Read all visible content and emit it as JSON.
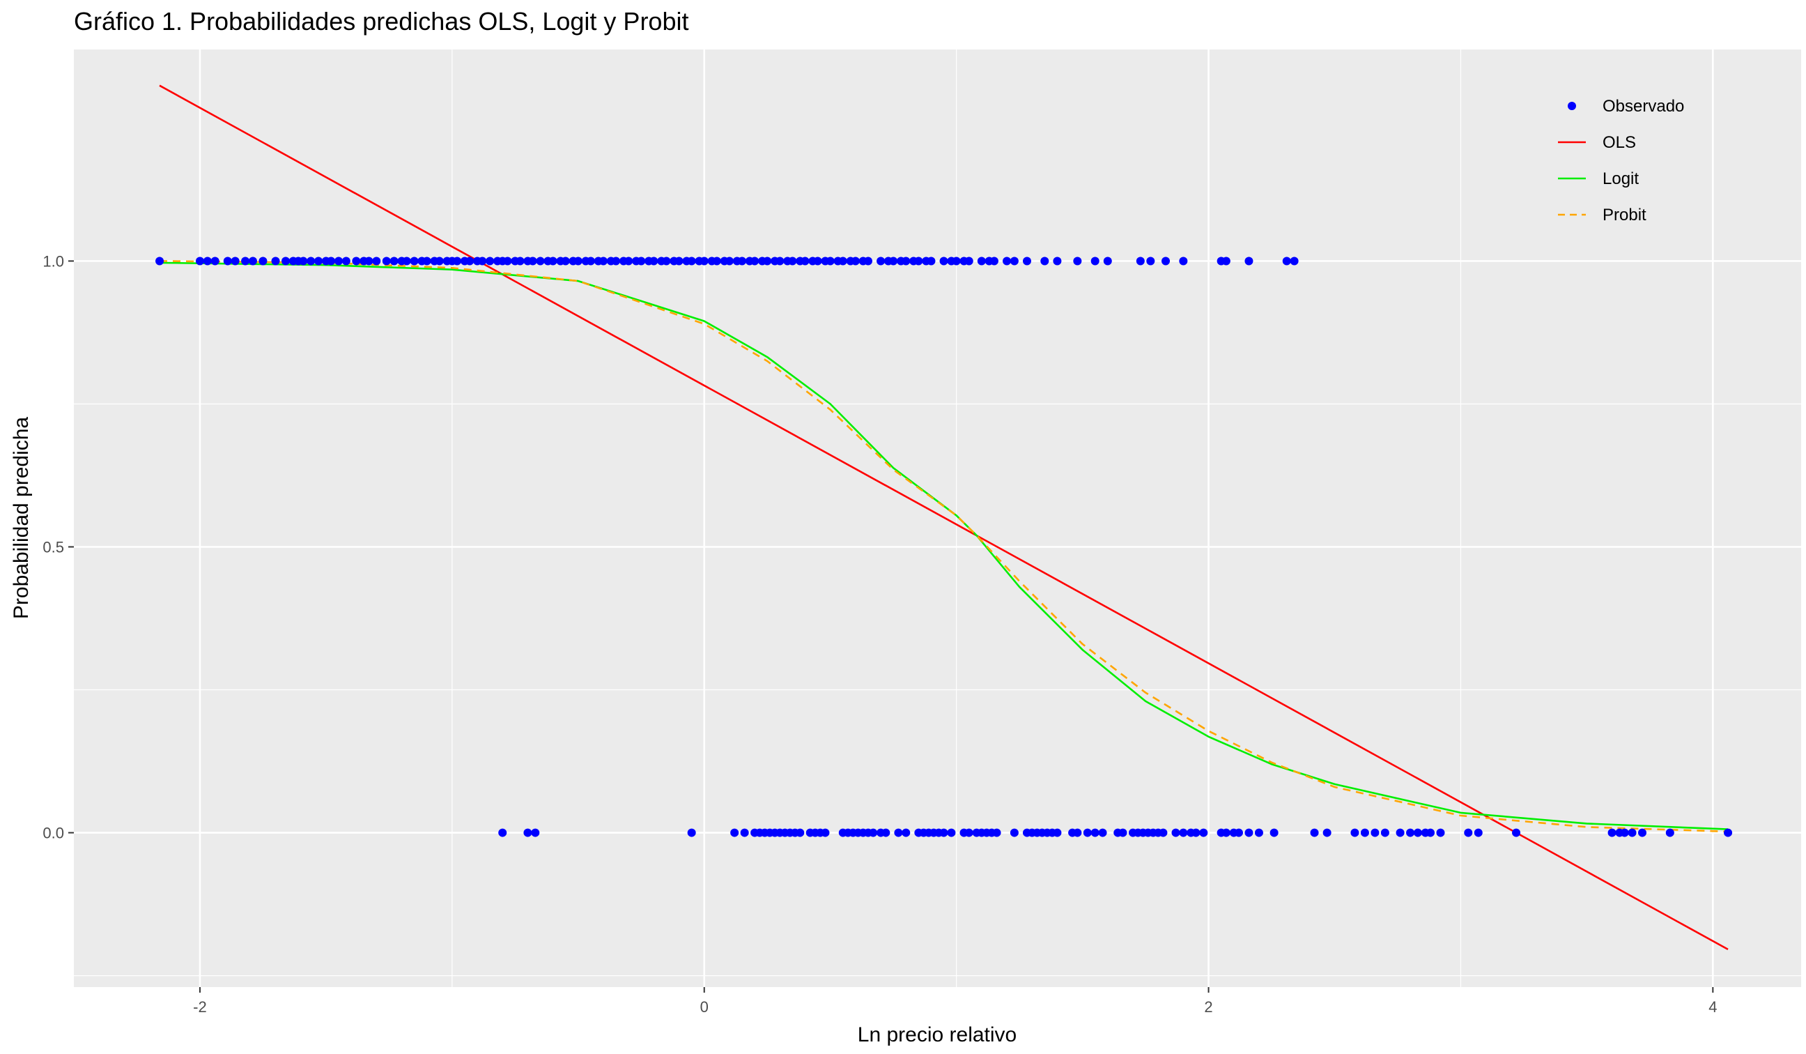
{
  "chart_data": {
    "type": "scatter",
    "title": "Gráfico 1. Probabilidades predichas OLS, Logit y Probit",
    "xlabel": "Ln precio relativo",
    "ylabel": "Probabilidad predicha",
    "xlim": [
      -2.5,
      4.35
    ],
    "ylim": [
      -0.27,
      1.37
    ],
    "xticks": [
      -2,
      0,
      2,
      4
    ],
    "xtick_labels": [
      "-2",
      "0",
      "2",
      "4"
    ],
    "yticks": [
      0.0,
      0.5,
      1.0
    ],
    "ytick_labels": [
      "0.0",
      "0.5",
      "1.0"
    ],
    "grid": true,
    "legend": {
      "position": "top-right",
      "entries": [
        {
          "label": "Observado",
          "kind": "point",
          "color": "#0000FF"
        },
        {
          "label": "OLS",
          "kind": "line",
          "color": "#FF0000"
        },
        {
          "label": "Logit",
          "kind": "line",
          "color": "#00EE00"
        },
        {
          "label": "Probit",
          "kind": "dashed",
          "color": "#FFA500"
        }
      ]
    },
    "series": [
      {
        "name": "Observado",
        "kind": "points",
        "color": "#0000FF",
        "x_at_y1": [
          -2.16,
          -2.0,
          -1.97,
          -1.94,
          -1.89,
          -1.86,
          -1.82,
          -1.79,
          -1.75,
          -1.7,
          -1.66,
          -1.63,
          -1.61,
          -1.59,
          -1.56,
          -1.53,
          -1.5,
          -1.48,
          -1.45,
          -1.42,
          -1.38,
          -1.35,
          -1.33,
          -1.3,
          -1.26,
          -1.23,
          -1.2,
          -1.18,
          -1.15,
          -1.12,
          -1.1,
          -1.07,
          -1.05,
          -1.02,
          -1.0,
          -0.98,
          -0.95,
          -0.93,
          -0.9,
          -0.88,
          -0.85,
          -0.82,
          -0.8,
          -0.78,
          -0.75,
          -0.73,
          -0.7,
          -0.68,
          -0.65,
          -0.62,
          -0.6,
          -0.57,
          -0.55,
          -0.52,
          -0.5,
          -0.47,
          -0.45,
          -0.42,
          -0.4,
          -0.37,
          -0.35,
          -0.32,
          -0.3,
          -0.27,
          -0.25,
          -0.22,
          -0.2,
          -0.17,
          -0.15,
          -0.12,
          -0.1,
          -0.07,
          -0.05,
          -0.02,
          0.0,
          0.03,
          0.05,
          0.08,
          0.1,
          0.13,
          0.15,
          0.18,
          0.2,
          0.23,
          0.25,
          0.28,
          0.3,
          0.33,
          0.35,
          0.38,
          0.4,
          0.43,
          0.45,
          0.48,
          0.5,
          0.53,
          0.55,
          0.58,
          0.6,
          0.63,
          0.65,
          0.7,
          0.73,
          0.75,
          0.78,
          0.8,
          0.83,
          0.85,
          0.88,
          0.9,
          0.95,
          0.98,
          1.0,
          1.03,
          1.05,
          1.1,
          1.13,
          1.15,
          1.2,
          1.23,
          1.28,
          1.35,
          1.4,
          1.48,
          1.55,
          1.6,
          1.73,
          1.77,
          1.83,
          1.9,
          2.05,
          2.07,
          2.16,
          2.31,
          2.34
        ],
        "x_at_y0": [
          -0.8,
          -0.7,
          -0.67,
          -0.05,
          0.12,
          0.16,
          0.2,
          0.22,
          0.24,
          0.26,
          0.28,
          0.3,
          0.32,
          0.34,
          0.36,
          0.38,
          0.42,
          0.44,
          0.46,
          0.48,
          0.55,
          0.57,
          0.59,
          0.61,
          0.63,
          0.65,
          0.67,
          0.7,
          0.72,
          0.77,
          0.8,
          0.85,
          0.87,
          0.89,
          0.91,
          0.93,
          0.95,
          0.98,
          1.03,
          1.05,
          1.08,
          1.1,
          1.12,
          1.14,
          1.16,
          1.23,
          1.28,
          1.3,
          1.32,
          1.34,
          1.36,
          1.38,
          1.4,
          1.46,
          1.48,
          1.52,
          1.55,
          1.58,
          1.64,
          1.66,
          1.7,
          1.72,
          1.74,
          1.76,
          1.78,
          1.8,
          1.82,
          1.87,
          1.9,
          1.93,
          1.95,
          1.98,
          2.05,
          2.07,
          2.1,
          2.12,
          2.16,
          2.2,
          2.26,
          2.42,
          2.47,
          2.58,
          2.62,
          2.66,
          2.7,
          2.76,
          2.8,
          2.83,
          2.86,
          2.88,
          2.92,
          3.03,
          3.07,
          3.22,
          3.6,
          3.63,
          3.65,
          3.68,
          3.72,
          3.83,
          4.06
        ]
      },
      {
        "name": "OLS",
        "kind": "line",
        "color": "#FF0000",
        "x": [
          -2.16,
          4.06
        ],
        "y": [
          1.307,
          -0.204
        ]
      },
      {
        "name": "Logit",
        "kind": "line",
        "color": "#00EE00",
        "x": [
          -2.16,
          -1.5,
          -1.0,
          -0.5,
          0.0,
          0.25,
          0.5,
          0.75,
          1.0,
          1.08,
          1.25,
          1.5,
          1.75,
          2.0,
          2.25,
          2.5,
          3.0,
          3.5,
          4.06
        ],
        "y": [
          0.997,
          0.993,
          0.985,
          0.965,
          0.895,
          0.832,
          0.75,
          0.638,
          0.555,
          0.52,
          0.43,
          0.32,
          0.23,
          0.168,
          0.12,
          0.085,
          0.035,
          0.016,
          0.006
        ]
      },
      {
        "name": "Probit",
        "kind": "dashed",
        "color": "#FFA500",
        "x": [
          -2.16,
          -1.5,
          -1.0,
          -0.5,
          0.0,
          0.25,
          0.5,
          0.75,
          1.0,
          1.08,
          1.25,
          1.5,
          1.75,
          2.0,
          2.25,
          2.5,
          3.0,
          3.5,
          4.06
        ],
        "y": [
          1.0,
          0.997,
          0.988,
          0.965,
          0.89,
          0.825,
          0.74,
          0.635,
          0.555,
          0.52,
          0.44,
          0.33,
          0.245,
          0.178,
          0.123,
          0.08,
          0.03,
          0.01,
          0.002
        ]
      }
    ]
  }
}
